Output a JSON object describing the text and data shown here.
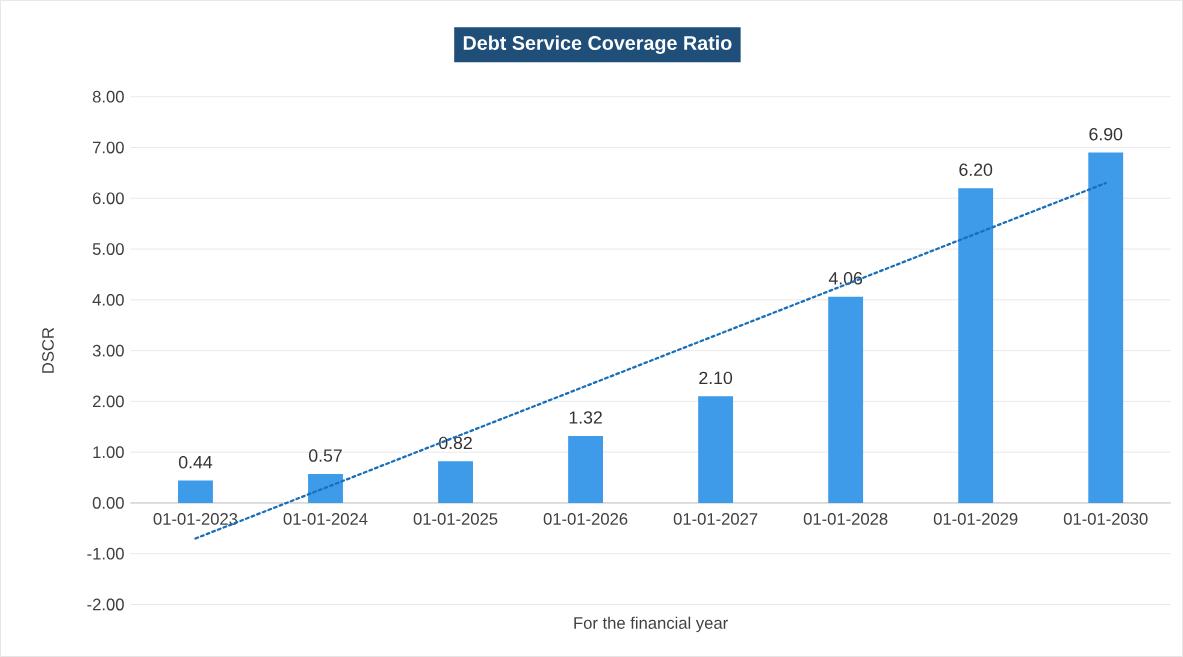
{
  "chart_data": {
    "type": "bar",
    "title": "Debt Service Coverage Ratio",
    "xlabel": "For the financial year",
    "ylabel": "DSCR",
    "categories": [
      "01-01-2023",
      "01-01-2024",
      "01-01-2025",
      "01-01-2026",
      "01-01-2027",
      "01-01-2028",
      "01-01-2029",
      "01-01-2030"
    ],
    "series": [
      {
        "color": "#3d9be9",
        "values": [
          0.44,
          0.57,
          0.82,
          1.32,
          2.1,
          4.06,
          6.2,
          6.9
        ],
        "value_labels": [
          "0.44",
          "0.57",
          "0.82",
          "1.32",
          "2.10",
          "4.06",
          "6.20",
          "6.90"
        ]
      },
      {
        "type": "line",
        "color": "#1a6fb8",
        "line_style": "dotted",
        "values": [
          -0.7,
          0.3,
          1.3,
          2.3,
          3.3,
          4.3,
          5.3,
          6.3
        ]
      }
    ],
    "ylim": [
      -2,
      8
    ],
    "yticks": [
      {
        "value": -2,
        "label": "-2.00"
      },
      {
        "value": -1,
        "label": "-1.00"
      },
      {
        "value": 0,
        "label": "0.00"
      },
      {
        "value": 1,
        "label": "1.00"
      },
      {
        "value": 2,
        "label": "2.00"
      },
      {
        "value": 3,
        "label": "3.00"
      },
      {
        "value": 4,
        "label": "4.00"
      },
      {
        "value": 5,
        "label": "5.00"
      },
      {
        "value": 6,
        "label": "6.00"
      },
      {
        "value": 7,
        "label": "7.00"
      },
      {
        "value": 8,
        "label": "8.00"
      }
    ],
    "grid": "y"
  }
}
